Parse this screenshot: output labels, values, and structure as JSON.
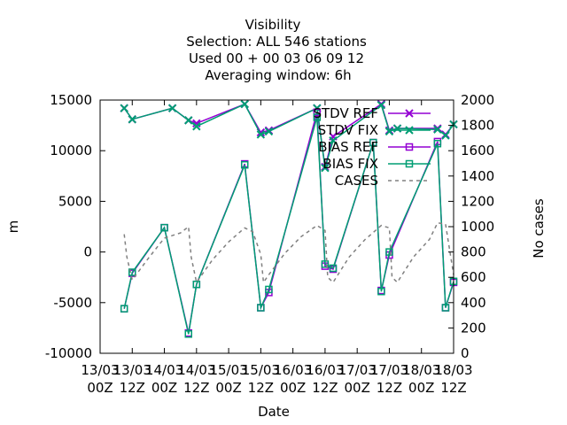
{
  "chart_data": {
    "type": "line",
    "title_lines": [
      "Visibility",
      "Selection: ALL     546 stations",
      "Used  00 + 00 03 06 09 12",
      "Averaging window:  6h"
    ],
    "xlabel": "Date",
    "ylabel": "m",
    "y2label": "No cases",
    "xlim": [
      0,
      132
    ],
    "ylim": [
      -10000,
      15000
    ],
    "y2lim": [
      0,
      2000
    ],
    "x_ticks": [
      {
        "x": 0,
        "line1": "13/03",
        "line2": "00Z"
      },
      {
        "x": 12,
        "line1": "13/03",
        "line2": "12Z"
      },
      {
        "x": 24,
        "line1": "14/03",
        "line2": "00Z"
      },
      {
        "x": 36,
        "line1": "14/03",
        "line2": "12Z"
      },
      {
        "x": 48,
        "line1": "15/03",
        "line2": "00Z"
      },
      {
        "x": 60,
        "line1": "15/03",
        "line2": "12Z"
      },
      {
        "x": 72,
        "line1": "16/03",
        "line2": "00Z"
      },
      {
        "x": 84,
        "line1": "16/03",
        "line2": "12Z"
      },
      {
        "x": 96,
        "line1": "17/03",
        "line2": "00Z"
      },
      {
        "x": 108,
        "line1": "17/03",
        "line2": "12Z"
      },
      {
        "x": 120,
        "line1": "18/03",
        "line2": "00Z"
      },
      {
        "x": 132,
        "line1": "18/03",
        "line2": "12Z"
      }
    ],
    "y_ticks": [
      -10000,
      -5000,
      0,
      5000,
      10000,
      15000
    ],
    "y2_ticks": [
      0,
      200,
      400,
      600,
      800,
      1000,
      1200,
      1400,
      1600,
      1800,
      2000
    ],
    "legend_position": "top-right",
    "series": [
      {
        "name": "STDV REF",
        "axis": "y",
        "color": "#9400d3",
        "marker": "x",
        "dash": "",
        "x": [
          9,
          12,
          27,
          33,
          36,
          54,
          60,
          63,
          81,
          84,
          87,
          105,
          108,
          111,
          126,
          129,
          132
        ],
        "values": [
          14200,
          13100,
          14200,
          13000,
          12700,
          14600,
          11800,
          12000,
          14200,
          8400,
          11400,
          14600,
          12000,
          12200,
          12200,
          11600,
          12600
        ]
      },
      {
        "name": "STDV FIX",
        "axis": "y",
        "color": "#009e73",
        "marker": "x",
        "dash": "",
        "x": [
          9,
          12,
          27,
          33,
          36,
          54,
          60,
          63,
          81,
          84,
          87,
          105,
          108,
          111,
          126,
          129,
          132
        ],
        "values": [
          14200,
          13100,
          14200,
          13000,
          12400,
          14600,
          11600,
          11900,
          14200,
          8300,
          11000,
          14500,
          11900,
          12200,
          12100,
          11500,
          12600
        ]
      },
      {
        "name": "BIAS REF",
        "axis": "y",
        "color": "#9400d3",
        "marker": "square",
        "dash": "",
        "x": [
          9,
          12,
          24,
          33,
          36,
          54,
          60,
          63,
          81,
          84,
          87,
          102,
          105,
          108,
          126,
          129,
          132
        ],
        "values": [
          -5600,
          -2100,
          2400,
          -8000,
          -3200,
          8700,
          -5500,
          -4000,
          13800,
          -1400,
          -1700,
          10800,
          -3800,
          -300,
          10900,
          -5500,
          -3000
        ]
      },
      {
        "name": "BIAS FIX",
        "axis": "y",
        "color": "#009e73",
        "marker": "square",
        "dash": "",
        "x": [
          9,
          12,
          24,
          33,
          36,
          54,
          60,
          63,
          81,
          84,
          87,
          102,
          105,
          108,
          126,
          129,
          132
        ],
        "values": [
          -5600,
          -2000,
          2400,
          -8100,
          -3200,
          8600,
          -5500,
          -3700,
          13300,
          -1200,
          -1600,
          10800,
          -3900,
          0,
          10700,
          -5500,
          -2900
        ]
      },
      {
        "name": "CASES",
        "axis": "y2",
        "color": "#808080",
        "marker": "",
        "dash": "4,4",
        "x": [
          9,
          10,
          12,
          18,
          24,
          30,
          33,
          34,
          36,
          42,
          48,
          54,
          57,
          60,
          61,
          63,
          69,
          75,
          81,
          84,
          85,
          87,
          93,
          99,
          105,
          108,
          109,
          111,
          117,
          123,
          126,
          129,
          132
        ],
        "values": [
          940,
          760,
          580,
          750,
          910,
          950,
          1000,
          760,
          560,
          740,
          880,
          990,
          960,
          780,
          560,
          620,
          790,
          920,
          1010,
          970,
          600,
          560,
          760,
          900,
          1010,
          990,
          600,
          560,
          760,
          900,
          1030,
          1020,
          620
        ]
      }
    ]
  }
}
